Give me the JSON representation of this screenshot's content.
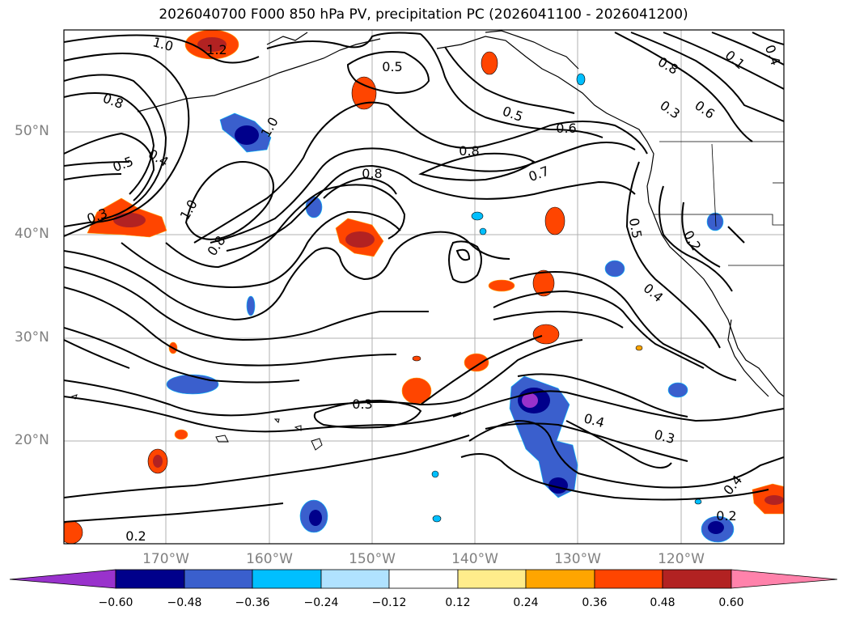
{
  "title": "2026040700 F000 850 hPa PV, precipitation PC (2026041100 - 2026041200)",
  "lat_labels": [
    "50°N",
    "40°N",
    "30°N",
    "20°N"
  ],
  "lon_labels": [
    "170°W",
    "160°W",
    "150°W",
    "140°W",
    "130°W",
    "120°W"
  ],
  "contour_labels": [
    "1.0",
    "1.2",
    "0.5",
    "0.8",
    "0.5",
    "0.6",
    "0.8",
    "0.7",
    "0.8",
    "0.5",
    "0.4",
    "0.3",
    "1.0",
    "0.8",
    "1.0",
    "0.5",
    "0.2",
    "0.4",
    "0.3",
    "0.4",
    "0.3",
    "0.2",
    "0.2",
    "0.4",
    "0.8",
    "0.6",
    "0.3",
    "0.1",
    "0.4"
  ],
  "colorbar": {
    "tick_labels": [
      "−0.60",
      "−0.48",
      "−0.36",
      "−0.24",
      "−0.12",
      "0.12",
      "0.24",
      "0.36",
      "0.48",
      "0.60"
    ],
    "colors": [
      "#9932cc",
      "#00008b",
      "#3a5fcd",
      "#00bfff",
      "#b0e2ff",
      "#ffffff",
      "#ffec8b",
      "#ffa500",
      "#ff4500",
      "#b22222",
      "#ff82ab"
    ]
  }
}
